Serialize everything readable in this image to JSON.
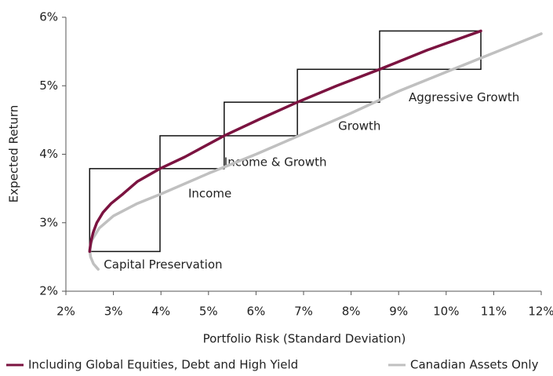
{
  "chart_data": {
    "type": "line",
    "xlabel": "Portfolio Risk (Standard Deviation)",
    "ylabel": "Expected Return",
    "xlim": [
      2,
      12
    ],
    "ylim": [
      2,
      6
    ],
    "xticks": [
      {
        "value": 2,
        "label": "2%"
      },
      {
        "value": 3,
        "label": "3%"
      },
      {
        "value": 4,
        "label": "4%"
      },
      {
        "value": 5,
        "label": "5%"
      },
      {
        "value": 6,
        "label": "6%"
      },
      {
        "value": 7,
        "label": "7%"
      },
      {
        "value": 8,
        "label": "8%"
      },
      {
        "value": 9,
        "label": "9%"
      },
      {
        "value": 10,
        "label": "10%"
      },
      {
        "value": 11,
        "label": "11%"
      },
      {
        "value": 12,
        "label": "12%"
      }
    ],
    "yticks": [
      {
        "value": 2,
        "label": "2%"
      },
      {
        "value": 3,
        "label": "3%"
      },
      {
        "value": 4,
        "label": "4%"
      },
      {
        "value": 5,
        "label": "5%"
      },
      {
        "value": 6,
        "label": "6%"
      }
    ],
    "series": [
      {
        "name": "Including Global Equities, Debt and High Yield",
        "color": "#7b1340",
        "x": [
          2.5,
          2.52,
          2.57,
          2.65,
          2.78,
          2.95,
          3.2,
          3.5,
          3.98,
          4.5,
          5.33,
          6.1,
          6.87,
          7.7,
          8.6,
          9.6,
          10.73
        ],
        "values": [
          2.58,
          2.7,
          2.85,
          3.0,
          3.15,
          3.28,
          3.42,
          3.6,
          3.79,
          3.96,
          4.27,
          4.52,
          4.76,
          5.0,
          5.24,
          5.52,
          5.8
        ]
      },
      {
        "name": "Canadian Assets Only",
        "color": "#c0c0c0",
        "x": [
          2.68,
          2.58,
          2.52,
          2.5,
          2.55,
          2.7,
          3.0,
          3.5,
          4.0,
          5.0,
          6.0,
          7.0,
          8.0,
          9.0,
          10.0,
          11.0,
          12.0
        ],
        "values": [
          2.32,
          2.4,
          2.5,
          2.6,
          2.75,
          2.92,
          3.1,
          3.28,
          3.42,
          3.72,
          4.0,
          4.3,
          4.6,
          4.92,
          5.2,
          5.48,
          5.76
        ]
      }
    ],
    "regions": [
      {
        "label": "Capital Preservation",
        "x": [
          2.5,
          3.98
        ],
        "y": [
          2.58,
          3.79
        ]
      },
      {
        "label": "Income",
        "x": [
          3.98,
          5.33
        ],
        "y": [
          3.79,
          4.27
        ]
      },
      {
        "label": "Income & Growth",
        "x": [
          5.33,
          6.87
        ],
        "y": [
          4.27,
          4.76
        ]
      },
      {
        "label": "Growth",
        "x": [
          6.87,
          8.6
        ],
        "y": [
          4.76,
          5.24
        ]
      },
      {
        "label": "Aggressive Growth",
        "x": [
          8.6,
          10.73
        ],
        "y": [
          5.24,
          5.8
        ]
      }
    ]
  }
}
